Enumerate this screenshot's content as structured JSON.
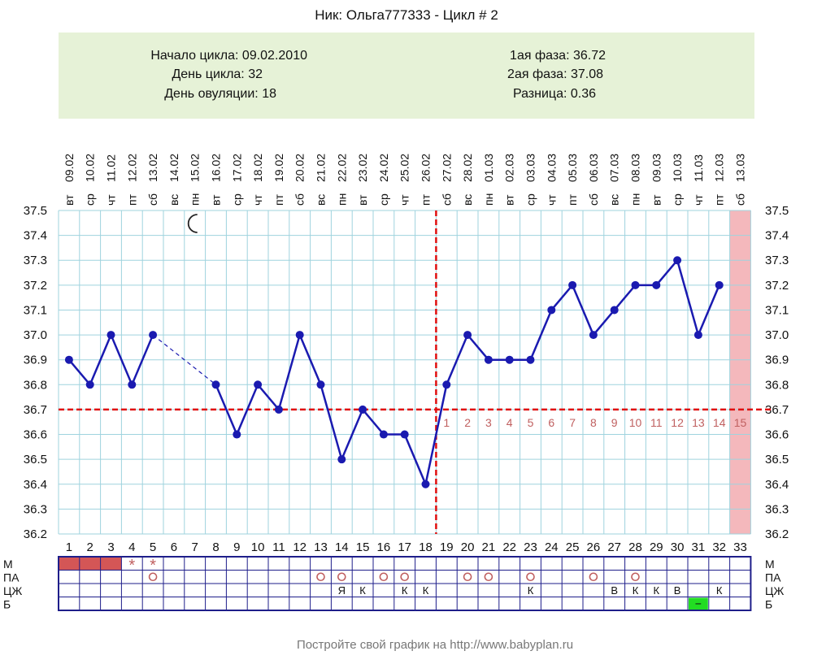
{
  "title": "Ник: Ольга777333 - Цикл # 2",
  "info": {
    "start_label": "Начало цикла: 09.02.2010",
    "day_label": "День цикла: 32",
    "ovulation_label": "День овуляции: 18",
    "phase1_label": "1ая фаза: 36.72",
    "phase2_label": "2ая фаза: 37.08",
    "diff_label": "Разница: 0.36"
  },
  "footer": "Постройте свой график на http://www.babyplan.ru",
  "colors": {
    "info_bg": "#e6f2d7",
    "grid": "#9fd3de",
    "line": "#1a1ab0",
    "point": "#1a1ab0",
    "coverline": "#e01010",
    "future_day": "#f4b8bc",
    "menses": "#d45656",
    "phase_numbers": "#c06060",
    "table_border": "#1e1e8a",
    "b_marker": "#22dd22"
  },
  "chart_data": {
    "type": "line",
    "title": "Ник: Ольга777333 - Цикл # 2",
    "ylim": [
      36.2,
      37.5
    ],
    "yticks": [
      "36.2",
      "36.3",
      "36.4",
      "36.5",
      "36.6",
      "36.7",
      "36.8",
      "36.9",
      "37.0",
      "37.1",
      "37.2",
      "37.3",
      "37.4",
      "37.5"
    ],
    "grid": true,
    "days": [
      "1",
      "2",
      "3",
      "4",
      "5",
      "6",
      "7",
      "8",
      "9",
      "10",
      "11",
      "12",
      "13",
      "14",
      "15",
      "16",
      "17",
      "18",
      "19",
      "20",
      "21",
      "22",
      "23",
      "24",
      "25",
      "26",
      "27",
      "28",
      "29",
      "30",
      "31",
      "32",
      "33"
    ],
    "dates": [
      "09.02",
      "10.02",
      "11.02",
      "12.02",
      "13.02",
      "14.02",
      "15.02",
      "16.02",
      "17.02",
      "18.02",
      "19.02",
      "20.02",
      "21.02",
      "22.02",
      "23.02",
      "24.02",
      "25.02",
      "26.02",
      "27.02",
      "28.02",
      "01.03",
      "02.03",
      "03.03",
      "04.03",
      "05.03",
      "06.03",
      "07.03",
      "08.03",
      "09.03",
      "10.03",
      "11.03",
      "12.03",
      "13.03"
    ],
    "weekdays": [
      "вт",
      "ср",
      "чт",
      "пт",
      "сб",
      "вс",
      "пн",
      "вт",
      "ср",
      "чт",
      "пт",
      "сб",
      "вс",
      "пн",
      "вт",
      "ср",
      "чт",
      "пт",
      "сб",
      "вс",
      "пн",
      "вт",
      "ср",
      "чт",
      "пт",
      "сб",
      "вс",
      "пн",
      "вт",
      "ср",
      "чт",
      "пт",
      "сб"
    ],
    "series": [
      {
        "values": [
          36.9,
          36.8,
          37.0,
          36.8,
          37.0,
          null,
          null,
          36.8,
          36.6,
          36.8,
          36.7,
          37.0,
          36.8,
          36.5,
          36.7,
          36.6,
          36.6,
          36.4,
          36.8,
          37.0,
          36.9,
          36.9,
          36.9,
          37.1,
          37.2,
          37.0,
          37.1,
          37.2,
          37.2,
          37.3,
          37.0,
          37.2,
          null
        ]
      }
    ],
    "gap": {
      "from_day": 5,
      "to_day": 8,
      "style": "dashed"
    },
    "coverline": 36.7,
    "ovulation_day": 18,
    "future_day": 33,
    "moon_day": 7,
    "phase2_numbers": [
      "1",
      "2",
      "3",
      "4",
      "5",
      "6",
      "7",
      "8",
      "9",
      "10",
      "11",
      "12",
      "13",
      "14",
      "15"
    ],
    "rows": {
      "labels": [
        "М",
        "ПА",
        "ЦЖ",
        "Б"
      ],
      "M": [
        "bar",
        "bar",
        "bar",
        "*",
        "*",
        "",
        "",
        "",
        "",
        "",
        "",
        "",
        "",
        "",
        "",
        "",
        "",
        "",
        "",
        "",
        "",
        "",
        "",
        "",
        "",
        "",
        "",
        "",
        "",
        "",
        "",
        "",
        ""
      ],
      "PA": [
        "",
        "",
        "",
        "",
        "o",
        "",
        "",
        "",
        "",
        "",
        "",
        "",
        "o",
        "o",
        "",
        "o",
        "o",
        "",
        "",
        "o",
        "o",
        "",
        "o",
        "",
        "",
        "o",
        "",
        "o",
        "",
        "",
        "",
        "",
        ""
      ],
      "CJ": [
        "",
        "",
        "",
        "",
        "",
        "",
        "",
        "",
        "",
        "",
        "",
        "",
        "",
        "Я",
        "К",
        "",
        "К",
        "К",
        "",
        "",
        "",
        "",
        "К",
        "",
        "",
        "",
        "В",
        "К",
        "К",
        "В",
        "",
        "К",
        ""
      ],
      "B": [
        "",
        "",
        "",
        "",
        "",
        "",
        "",
        "",
        "",
        "",
        "",
        "",
        "",
        "",
        "",
        "",
        "",
        "",
        "",
        "",
        "",
        "",
        "",
        "",
        "",
        "",
        "",
        "",
        "",
        "",
        "−",
        "",
        ""
      ]
    }
  }
}
